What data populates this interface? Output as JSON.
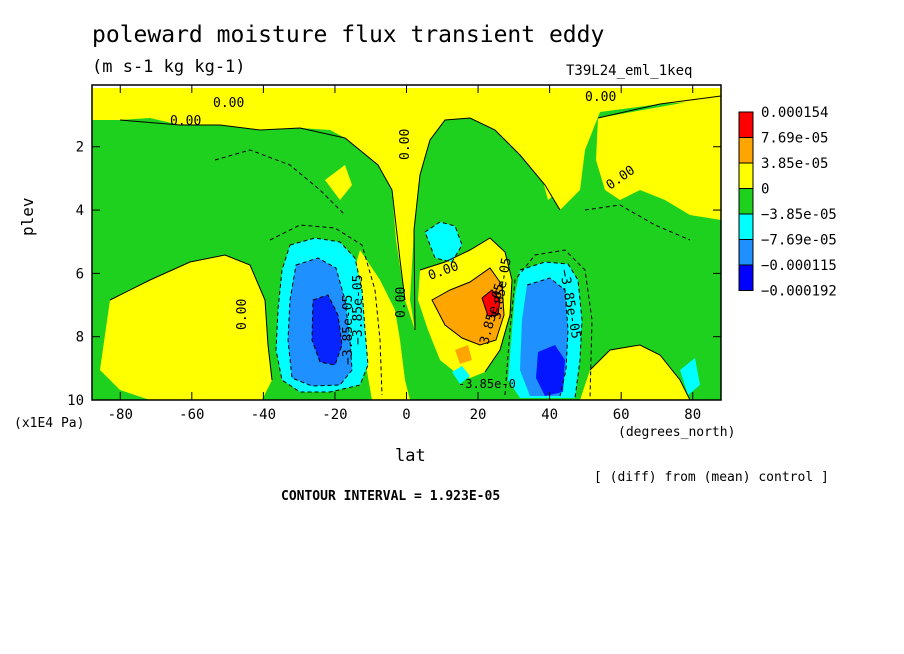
{
  "title": "poleward moisture flux transient eddy",
  "units": "(m s-1 kg kg-1)",
  "run_name": "T39L24_eml_1keq",
  "diff_note": "[ (diff) from (mean) control ]",
  "contour_interval": "CONTOUR INTERVAL = 1.923E-05",
  "chart_data": {
    "type": "heatmap",
    "xlabel": "lat",
    "x_units": "(degrees_north)",
    "ylabel": "plev",
    "y_units": "(x1E4 Pa)",
    "x_ticks": [
      "-80",
      "-60",
      "-40",
      "-20",
      "0",
      "20",
      "40",
      "60",
      "80"
    ],
    "x_tick_values": [
      -80,
      -60,
      -40,
      -20,
      0,
      20,
      40,
      60,
      80
    ],
    "y_ticks": [
      "2",
      "4",
      "6",
      "8",
      "10"
    ],
    "y_tick_values": [
      2,
      4,
      6,
      8,
      10
    ],
    "xlim": [
      -87.9,
      87.9
    ],
    "ylim": [
      10,
      0.05
    ],
    "y_inverted": true,
    "colorbar": {
      "labels": [
        "0.000154",
        "7.69e-05",
        "3.85e-05",
        "0",
        "−3.85e-05",
        "−7.69e-05",
        "−0.000115",
        "−0.000192"
      ],
      "colors": [
        "#ff0000",
        "#ffa500",
        "#ffff00",
        "#1fd11f",
        "#00ffff",
        "#1e90ff",
        "#0000ff"
      ]
    },
    "contour_labels": [
      "0.00",
      "0.00",
      "0.00",
      "0.00",
      "0.00",
      "0.00",
      "0.00",
      "0.00",
      "3.85e-05",
      "−3.85e-05",
      "−3.85e-05",
      "−3.85e-05",
      "-3.85e-0",
      "3.85e-05"
    ],
    "regions": [
      {
        "level": -3.85e-05,
        "lat": [
          -43,
          -8
        ],
        "plev": [
          5.0,
          9.9
        ]
      },
      {
        "level": -7.69e-05,
        "lat": [
          -36,
          -12
        ],
        "plev": [
          5.6,
          9.6
        ]
      },
      {
        "level": -0.000115,
        "lat": [
          -30,
          -16
        ],
        "plev": [
          6.4,
          9.2
        ]
      },
      {
        "level": -3.85e-05,
        "lat": [
          28,
          50
        ],
        "plev": [
          5.2,
          9.9
        ]
      },
      {
        "level": -7.69e-05,
        "lat": [
          31,
          46
        ],
        "plev": [
          6.3,
          9.7
        ]
      },
      {
        "level": -0.000115,
        "lat": [
          36,
          44
        ],
        "plev": [
          8.3,
          9.9
        ]
      },
      {
        "level": 3.85e-05,
        "lat": [
          8,
          29
        ],
        "plev": [
          6.0,
          9.3
        ]
      },
      {
        "level": 7.69e-05,
        "lat": [
          21,
          27
        ],
        "plev": [
          6.7,
          7.6
        ]
      },
      {
        "level": -3.85e-05,
        "lat": [
          6,
          14
        ],
        "plev": [
          4.3,
          5.4
        ]
      }
    ]
  }
}
